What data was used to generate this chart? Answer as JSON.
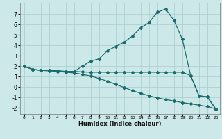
{
  "xlabel": "Humidex (Indice chaleur)",
  "background_color": "#cce8e8",
  "grid_color": "#a8cccc",
  "line_color": "#1a6b6b",
  "xlim": [
    -0.5,
    23.5
  ],
  "ylim": [
    -2.6,
    8.1
  ],
  "xticks": [
    0,
    1,
    2,
    3,
    4,
    5,
    6,
    7,
    8,
    9,
    10,
    11,
    12,
    13,
    14,
    15,
    16,
    17,
    18,
    19,
    20,
    21,
    22,
    23
  ],
  "yticks": [
    -2,
    -1,
    0,
    1,
    2,
    3,
    4,
    5,
    6,
    7
  ],
  "line_a": [
    2.0,
    1.7,
    1.6,
    1.6,
    1.55,
    1.5,
    1.5,
    2.0,
    2.5,
    2.7,
    3.5,
    3.9,
    4.3,
    4.9,
    5.7,
    6.2,
    7.2,
    7.5,
    6.4,
    4.6,
    1.1,
    -0.85,
    -0.95,
    -2.1
  ],
  "line_b": [
    2.0,
    1.7,
    1.6,
    1.6,
    1.55,
    1.5,
    1.5,
    1.45,
    1.42,
    1.42,
    1.42,
    1.42,
    1.42,
    1.42,
    1.42,
    1.42,
    1.42,
    1.42,
    1.42,
    1.42,
    1.1,
    -0.85,
    -0.95,
    -2.1
  ],
  "line_c": [
    2.0,
    1.7,
    1.6,
    1.55,
    1.5,
    1.42,
    1.35,
    1.22,
    1.05,
    0.82,
    0.55,
    0.25,
    -0.05,
    -0.35,
    -0.6,
    -0.85,
    -1.05,
    -1.2,
    -1.35,
    -1.5,
    -1.62,
    -1.75,
    -1.88,
    -2.1
  ]
}
